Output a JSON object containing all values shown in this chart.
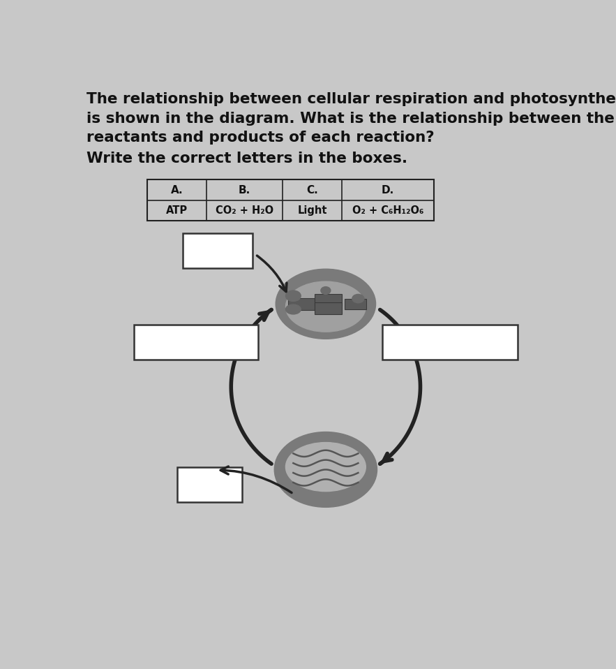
{
  "bg_color": "#c8c8c8",
  "title_lines": [
    "The relationship between cellular respiration and photosynthesis",
    "is shown in the diagram. What is the relationship between the",
    "reactants and products of each reaction?"
  ],
  "subtitle": "Write the correct letters in the boxes.",
  "legend_headers": [
    "A.",
    "B.",
    "C.",
    "D."
  ],
  "legend_values": [
    "ATP",
    "CO₂ + H₂O",
    "Light",
    "O₂ + C₆H₁₂O₆"
  ],
  "text_color": "#111111",
  "box_color": "#ffffff",
  "box_edge": "#222222",
  "arrow_color": "#222222",
  "title_fontsize": 15.5,
  "subtitle_fontsize": 15.5
}
